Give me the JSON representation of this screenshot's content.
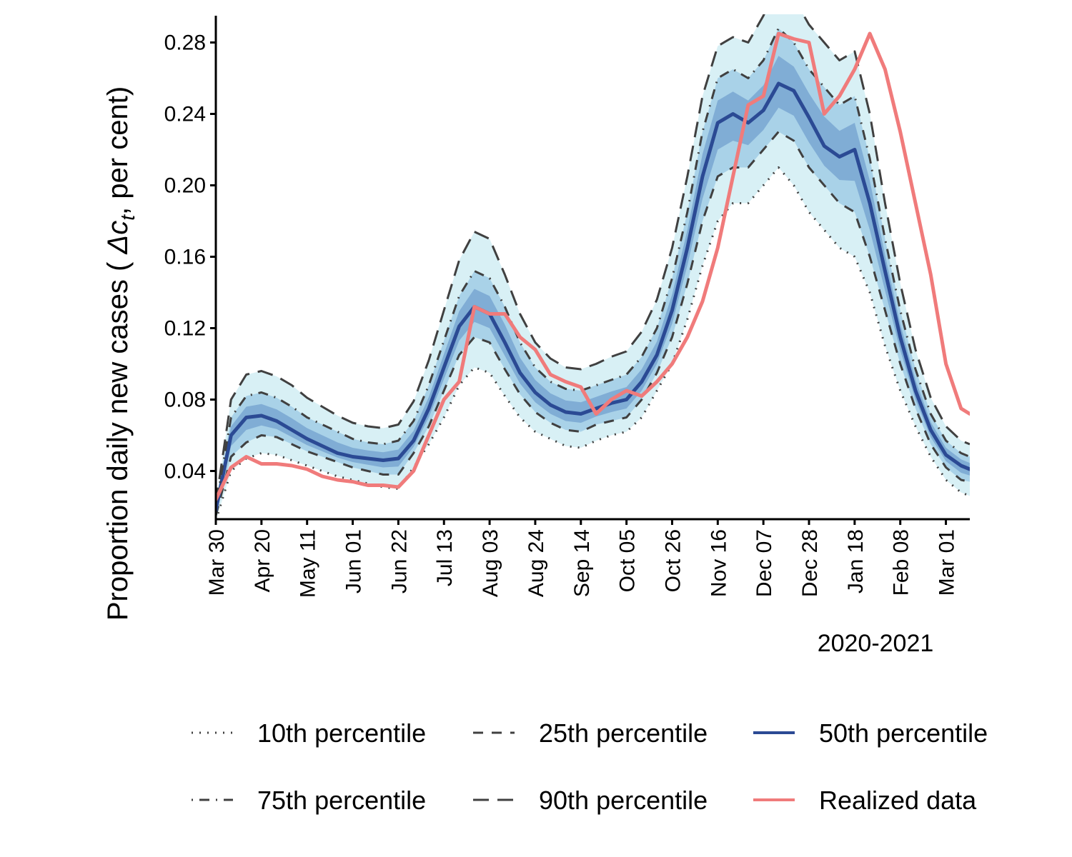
{
  "chart_data": {
    "type": "line",
    "ylabel_parts": [
      "Proportion daily new cases ( ",
      "Δc",
      "t",
      ", per cent)"
    ],
    "xlabel": "2020-2021",
    "ylim": [
      0.013,
      0.295
    ],
    "yticks": [
      0.04,
      0.08,
      0.12,
      0.16,
      0.2,
      0.24,
      0.28
    ],
    "ytick_labels": [
      "0.04",
      "0.08",
      "0.12",
      "0.16",
      "0.20",
      "0.24",
      "0.28"
    ],
    "xlim": [
      0,
      347
    ],
    "xticks": [
      0,
      21,
      42,
      63,
      84,
      105,
      126,
      147,
      168,
      189,
      210,
      231,
      252,
      273,
      294,
      315,
      336
    ],
    "xtick_labels": [
      "Mar 30",
      "Apr 20",
      "May 11",
      "Jun 01",
      "Jun 22",
      "Jul 13",
      "Aug 03",
      "Aug 24",
      "Sep 14",
      "Oct 05",
      "Oct 26",
      "Nov 16",
      "Dec 07",
      "Dec 28",
      "Jan 18",
      "Feb 08",
      "Mar 01"
    ],
    "x_unit": "days since Mar 30 2020",
    "x": [
      0,
      7,
      14,
      21,
      28,
      35,
      42,
      49,
      56,
      63,
      70,
      77,
      84,
      91,
      98,
      105,
      112,
      119,
      126,
      133,
      140,
      147,
      154,
      161,
      168,
      175,
      182,
      189,
      196,
      203,
      210,
      217,
      224,
      231,
      238,
      245,
      252,
      259,
      266,
      273,
      280,
      287,
      294,
      301,
      308,
      315,
      322,
      329,
      336,
      343,
      347
    ],
    "series": [
      {
        "name": "10th percentile",
        "style": "dotted",
        "color": "#404040",
        "values": [
          0.012,
          0.04,
          0.047,
          0.05,
          0.049,
          0.046,
          0.043,
          0.04,
          0.037,
          0.035,
          0.033,
          0.031,
          0.03,
          0.042,
          0.055,
          0.07,
          0.088,
          0.098,
          0.095,
          0.082,
          0.07,
          0.062,
          0.058,
          0.054,
          0.053,
          0.057,
          0.06,
          0.062,
          0.07,
          0.085,
          0.1,
          0.125,
          0.155,
          0.18,
          0.19,
          0.19,
          0.2,
          0.21,
          0.2,
          0.185,
          0.175,
          0.165,
          0.16,
          0.14,
          0.11,
          0.085,
          0.065,
          0.048,
          0.035,
          0.028,
          0.026
        ]
      },
      {
        "name": "25th percentile",
        "style": "dashed",
        "color": "#404040",
        "values": [
          0.015,
          0.048,
          0.056,
          0.06,
          0.059,
          0.055,
          0.051,
          0.048,
          0.045,
          0.042,
          0.04,
          0.038,
          0.038,
          0.05,
          0.065,
          0.085,
          0.105,
          0.115,
          0.112,
          0.097,
          0.083,
          0.073,
          0.067,
          0.063,
          0.062,
          0.066,
          0.068,
          0.07,
          0.08,
          0.095,
          0.115,
          0.145,
          0.18,
          0.205,
          0.21,
          0.21,
          0.22,
          0.23,
          0.225,
          0.21,
          0.2,
          0.19,
          0.185,
          0.16,
          0.13,
          0.1,
          0.075,
          0.055,
          0.042,
          0.035,
          0.034
        ]
      },
      {
        "name": "50th percentile",
        "style": "solid",
        "color": "#2b4a94",
        "values": [
          0.018,
          0.06,
          0.07,
          0.071,
          0.068,
          0.063,
          0.058,
          0.054,
          0.05,
          0.048,
          0.047,
          0.046,
          0.047,
          0.057,
          0.075,
          0.098,
          0.121,
          0.132,
          0.128,
          0.112,
          0.095,
          0.084,
          0.077,
          0.073,
          0.072,
          0.075,
          0.078,
          0.08,
          0.09,
          0.105,
          0.13,
          0.165,
          0.205,
          0.235,
          0.24,
          0.235,
          0.242,
          0.257,
          0.253,
          0.238,
          0.222,
          0.216,
          0.22,
          0.19,
          0.152,
          0.115,
          0.085,
          0.063,
          0.049,
          0.043,
          0.041
        ]
      },
      {
        "name": "75th percentile",
        "style": "dotdash",
        "color": "#404040",
        "values": [
          0.02,
          0.07,
          0.082,
          0.084,
          0.081,
          0.076,
          0.07,
          0.066,
          0.062,
          0.058,
          0.056,
          0.055,
          0.057,
          0.068,
          0.088,
          0.113,
          0.138,
          0.152,
          0.148,
          0.132,
          0.112,
          0.098,
          0.09,
          0.086,
          0.085,
          0.088,
          0.091,
          0.094,
          0.104,
          0.12,
          0.148,
          0.185,
          0.23,
          0.26,
          0.265,
          0.26,
          0.27,
          0.288,
          0.28,
          0.265,
          0.255,
          0.245,
          0.25,
          0.215,
          0.17,
          0.13,
          0.097,
          0.072,
          0.057,
          0.05,
          0.048
        ]
      },
      {
        "name": "90th percentile",
        "style": "longdash",
        "color": "#404040",
        "values": [
          0.022,
          0.08,
          0.094,
          0.096,
          0.093,
          0.088,
          0.081,
          0.076,
          0.071,
          0.067,
          0.065,
          0.064,
          0.066,
          0.079,
          0.102,
          0.13,
          0.158,
          0.174,
          0.17,
          0.15,
          0.128,
          0.112,
          0.103,
          0.098,
          0.097,
          0.1,
          0.104,
          0.107,
          0.118,
          0.136,
          0.165,
          0.205,
          0.25,
          0.278,
          0.283,
          0.28,
          0.295,
          0.315,
          0.305,
          0.29,
          0.28,
          0.27,
          0.275,
          0.24,
          0.19,
          0.145,
          0.108,
          0.081,
          0.065,
          0.057,
          0.055
        ]
      },
      {
        "name": "Realized data",
        "style": "solid",
        "color": "#f07b7b",
        "values": [
          0.024,
          0.042,
          0.048,
          0.044,
          0.044,
          0.043,
          0.041,
          0.037,
          0.035,
          0.034,
          0.032,
          0.032,
          0.031,
          0.04,
          0.06,
          0.08,
          0.09,
          0.132,
          0.128,
          0.128,
          0.115,
          0.108,
          0.094,
          0.09,
          0.087,
          0.072,
          0.08,
          0.085,
          0.082,
          0.09,
          0.1,
          0.115,
          0.135,
          0.165,
          0.205,
          0.245,
          0.25,
          0.285,
          0.282,
          0.28,
          0.24,
          0.25,
          0.265,
          0.285,
          0.265,
          0.23,
          0.19,
          0.15,
          0.1,
          0.075,
          0.072
        ]
      }
    ],
    "legend": [
      {
        "label": "10th percentile",
        "style": "dotted",
        "color": "#404040"
      },
      {
        "label": "25th percentile",
        "style": "dashed",
        "color": "#404040"
      },
      {
        "label": "50th percentile",
        "style": "solid",
        "color": "#2b4a94"
      },
      {
        "label": "75th percentile",
        "style": "dotdash",
        "color": "#404040"
      },
      {
        "label": "90th percentile",
        "style": "longdash",
        "color": "#404040"
      },
      {
        "label": "Realized data",
        "style": "solid",
        "color": "#f07b7b"
      }
    ],
    "legend_position": "bottom",
    "band_colors": [
      "#d8f0f5",
      "#a9d2e8",
      "#5f8ec4"
    ]
  }
}
